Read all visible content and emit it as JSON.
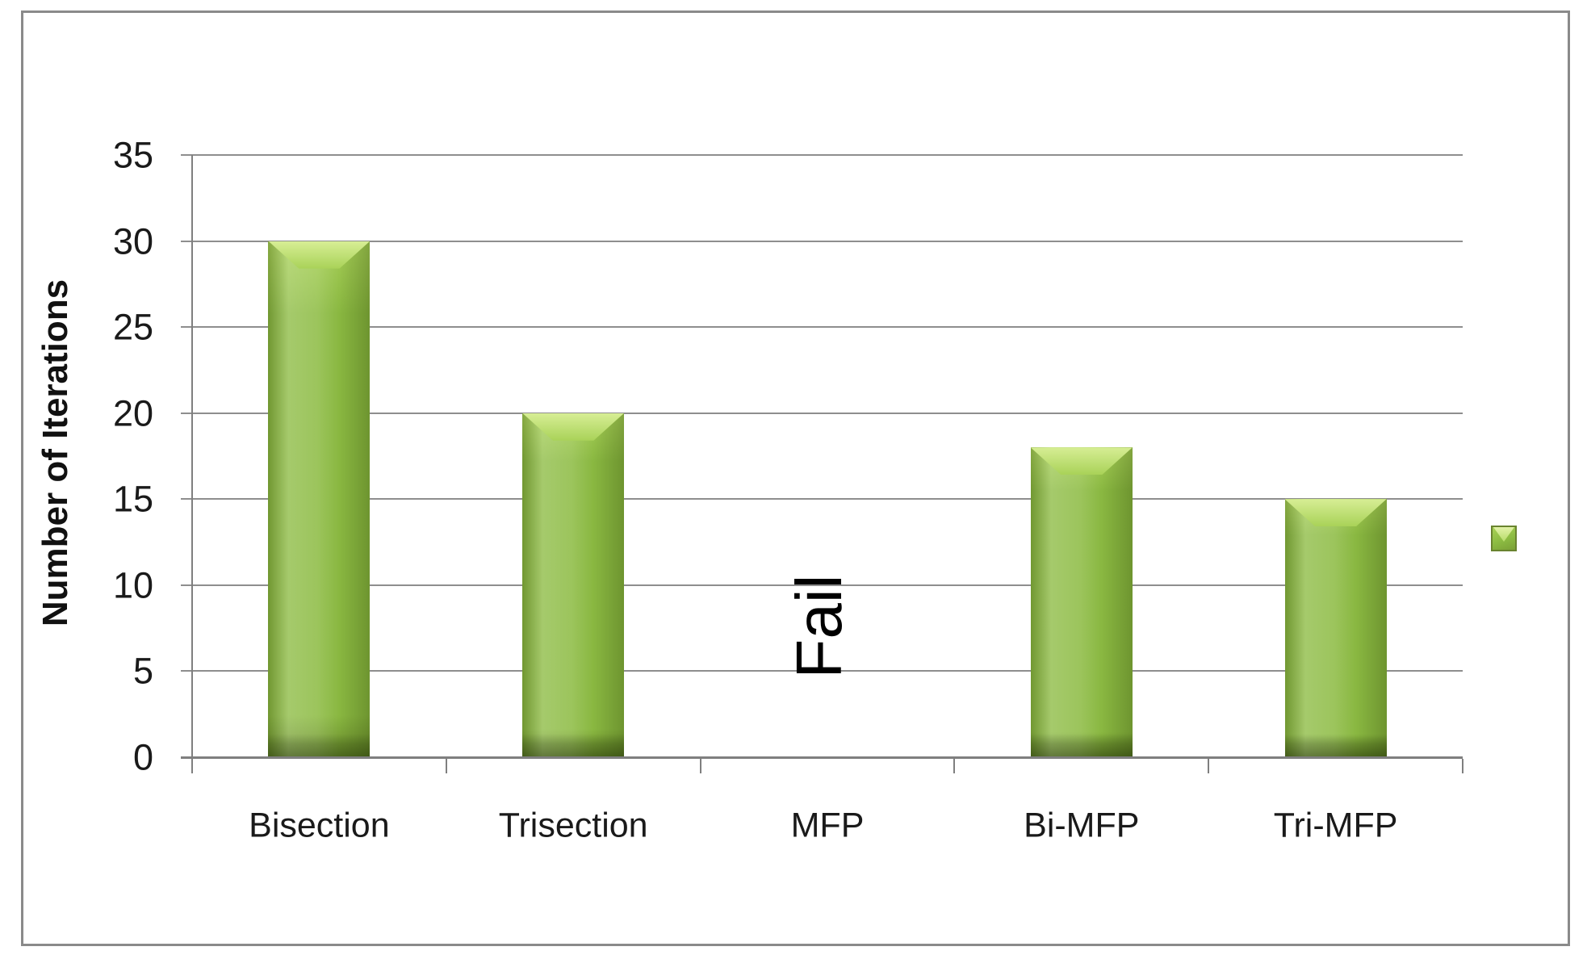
{
  "chart_data": {
    "type": "bar",
    "categories": [
      "Bisection",
      "Trisection",
      "MFP",
      "Bi-MFP",
      "Tri-MFP"
    ],
    "values": [
      30,
      20,
      null,
      18,
      15
    ],
    "ylabel": "Number of Iterations",
    "xlabel": "",
    "ylim": [
      0,
      35
    ],
    "yticks": [
      0,
      5,
      10,
      15,
      20,
      25,
      30,
      35
    ],
    "grid": true,
    "annotations": [
      {
        "category": "MFP",
        "text": "Fail",
        "rotation": -90
      }
    ],
    "legend": {
      "position": "right",
      "entries": [
        {
          "label": "",
          "marker": "green-square"
        }
      ]
    },
    "colors": {
      "bar_main": "#8cbb42",
      "bar_light": "#a9d258",
      "bar_sheen": "#d7ee95",
      "bar_dark": "#6c8f2e",
      "gridline": "#8e8e8e",
      "axis": "#7f7f7f",
      "text": "#1a1a1a",
      "frame_border": "#8a8a8a",
      "background": "#ffffff"
    }
  }
}
